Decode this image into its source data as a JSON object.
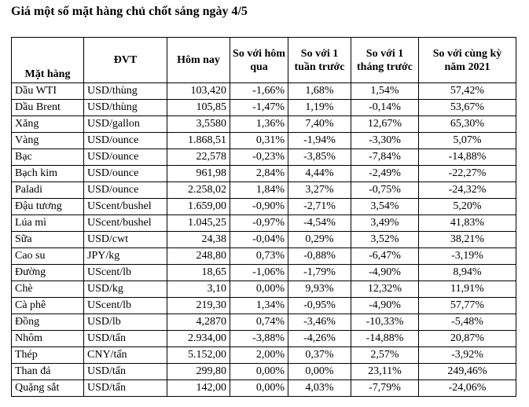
{
  "title": "Giá một số mặt hàng chủ chốt sáng ngày 4/5",
  "headers": [
    "Mặt hàng",
    "ĐVT",
    "Hôm nay",
    "So với hôm qua",
    "So với 1 tuần trước",
    "So với 1 tháng trước",
    "So với cùng kỳ năm 2021"
  ],
  "rows": [
    [
      "Dầu WTI",
      "USD/thùng",
      "103,420",
      "-1,66%",
      "1,68%",
      "1,54%",
      "57,42%"
    ],
    [
      "Dầu Brent",
      "USD/thùng",
      "105,85",
      "-1,47%",
      "1,19%",
      "-0,14%",
      "53,67%"
    ],
    [
      "Xăng",
      "USD/gallon",
      "3,5580",
      "1,36%",
      "7,40%",
      "12,67%",
      "65,30%"
    ],
    [
      "Vàng",
      "USD/ounce",
      "1.868,51",
      "0,31%",
      "-1,94%",
      "-3,30%",
      "5,07%"
    ],
    [
      "Bạc",
      "USD/ounce",
      "22,578",
      "-0,23%",
      "-3,85%",
      "-7,84%",
      "-14,88%"
    ],
    [
      "Bạch kim",
      "USD/ounce",
      "961,98",
      "2,84%",
      "4,44%",
      "-2,49%",
      "-22,27%"
    ],
    [
      "Paladi",
      "USD/ounce",
      "2.258,02",
      "1,84%",
      "3,27%",
      "-0,75%",
      "-24,32%"
    ],
    [
      "Đậu tương",
      "UScent/bushel",
      "1.659,00",
      "-0,90%",
      "-2,71%",
      "3,54%",
      "5,20%"
    ],
    [
      "Lúa mì",
      "UScent/bushel",
      "1.045,25",
      "-0,97%",
      "-4,54%",
      "3,49%",
      "41,83%"
    ],
    [
      "Sữa",
      "USD/cwt",
      "24,38",
      "-0,04%",
      "0,29%",
      "3,52%",
      "38,21%"
    ],
    [
      "Cao su",
      "JPY/kg",
      "248,80",
      "0,73%",
      "-0,88%",
      "-6,47%",
      "-3,19%"
    ],
    [
      "Đường",
      "UScent/lb",
      "18,65",
      "-1,06%",
      "-1,79%",
      "-4,90%",
      "8,94%"
    ],
    [
      "Chè",
      "USD/kg",
      "3,10",
      "0,00%",
      "9,93%",
      "12,32%",
      "11,91%"
    ],
    [
      "Cà phê",
      "UScent/lb",
      "219,30",
      "1,34%",
      "-0,95%",
      "-4,90%",
      "57,77%"
    ],
    [
      "Đồng",
      "USD/lb",
      "4,2870",
      "0,74%",
      "-3,46%",
      "-10,33%",
      "-5,48%"
    ],
    [
      "Nhôm",
      "USD/tấn",
      "2.934,00",
      "-3,88%",
      "-4,26%",
      "-14,88%",
      "20,87%"
    ],
    [
      "Thép",
      "CNY/tấn",
      "5.152,00",
      "2,00%",
      "0,37%",
      "2,57%",
      "-3,92%"
    ],
    [
      "Than đá",
      "USD/tấn",
      "299,80",
      "0,00%",
      "0,00%",
      "23,11%",
      "249,46%"
    ],
    [
      "Quặng sắt",
      "USD/tấn",
      "142,00",
      "0,00%",
      "4,03%",
      "-7,79%",
      "-24,06%"
    ]
  ]
}
